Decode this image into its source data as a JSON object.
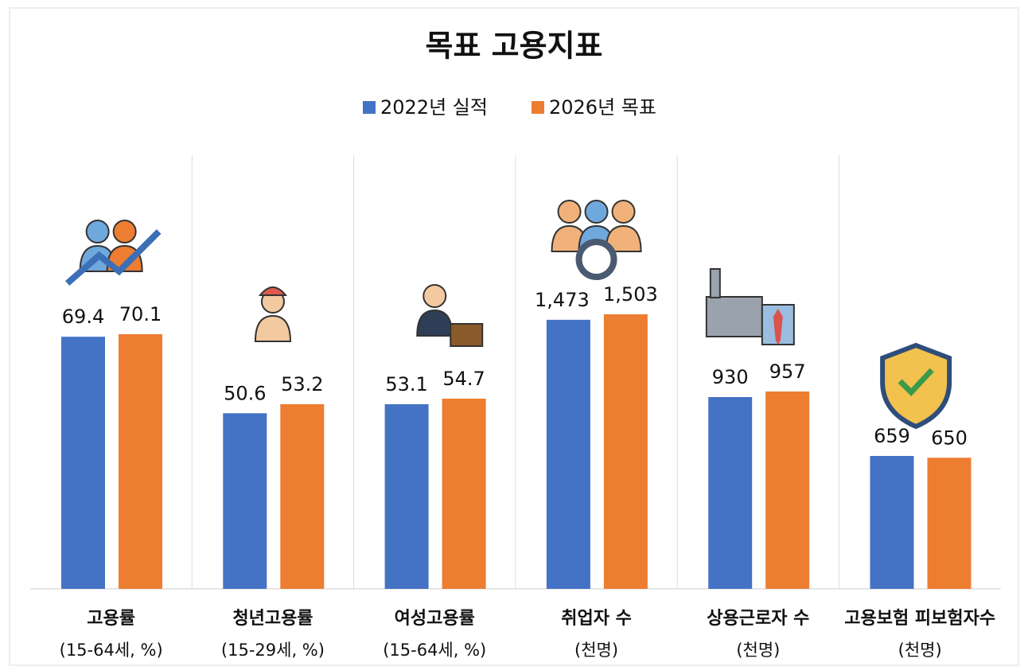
{
  "chart_data": {
    "type": "bar",
    "title": "목표 고용지표",
    "categories": [
      "고용률",
      "청년고용률",
      "여성고용률",
      "취업자 수",
      "상용근로자 수",
      "고용보험 피보험자수"
    ],
    "category_units": [
      "(15-64세, %)",
      "(15-29세, %)",
      "(15-64세, %)",
      "(천명)",
      "(천명)",
      "(천명)"
    ],
    "series": [
      {
        "name": "2022년 실적",
        "color": "#4472c4",
        "values": [
          69.4,
          50.6,
          53.1,
          1473,
          930,
          659
        ],
        "value_labels": [
          "69.4",
          "50.6",
          "53.1",
          "1,473",
          "930",
          "659"
        ]
      },
      {
        "name": "2026년 목표",
        "color": "#ed7d31",
        "values": [
          70.1,
          53.2,
          54.7,
          1503,
          957,
          650
        ],
        "value_labels": [
          "70.1",
          "53.2",
          "54.7",
          "1,503",
          "957",
          "650"
        ]
      }
    ]
  }
}
